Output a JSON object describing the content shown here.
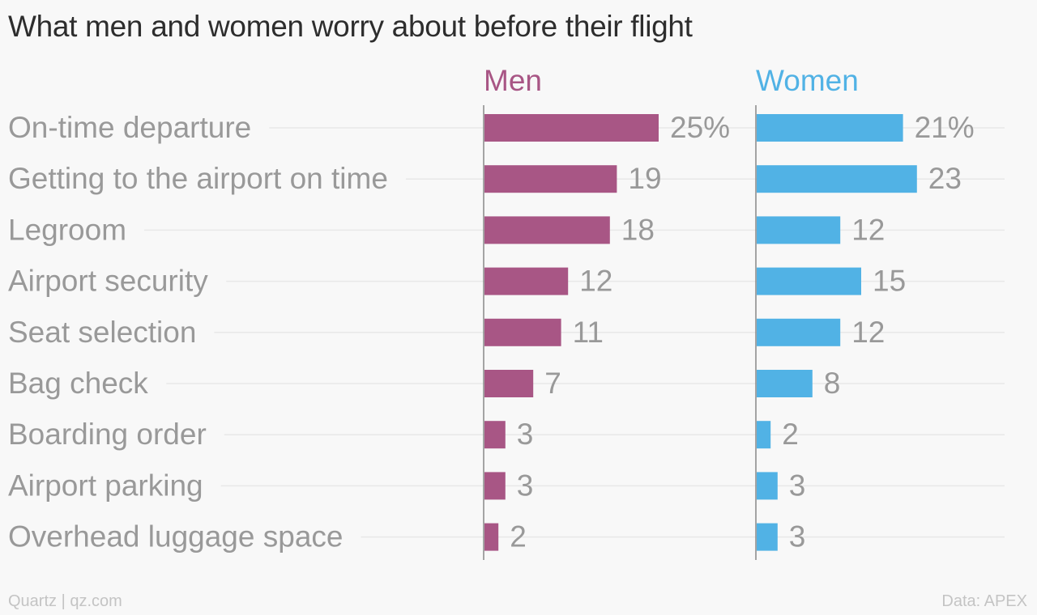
{
  "chart_data": {
    "type": "bar",
    "title": "What men and women worry about before their flight",
    "categories": [
      "On-time departure",
      "Getting to the airport on time",
      "Legroom",
      "Airport security",
      "Seat selection",
      "Bag check",
      "Boarding order",
      "Airport parking",
      "Overhead luggage space"
    ],
    "series": [
      {
        "name": "Men",
        "color": "#a85685",
        "values": [
          25,
          19,
          18,
          12,
          11,
          7,
          3,
          3,
          2
        ],
        "labels": [
          "25%",
          "19",
          "18",
          "12",
          "11",
          "7",
          "3",
          "3",
          "2"
        ]
      },
      {
        "name": "Women",
        "color": "#51b2e5",
        "values": [
          21,
          23,
          12,
          15,
          12,
          8,
          2,
          3,
          3
        ],
        "labels": [
          "21%",
          "23",
          "12",
          "15",
          "12",
          "8",
          "2",
          "3",
          "3"
        ]
      }
    ],
    "xlim": [
      0,
      25
    ],
    "unit": "%",
    "grid": true
  },
  "footer": {
    "source": "Quartz | qz.com",
    "data_credit": "Data: APEX"
  },
  "colors": {
    "background": "#f8f8f8",
    "title_text": "#2d2d2d",
    "label_text": "#999999",
    "gridline": "#e8e8e8",
    "axis": "#888888",
    "footer_text": "#c4c4c4"
  }
}
